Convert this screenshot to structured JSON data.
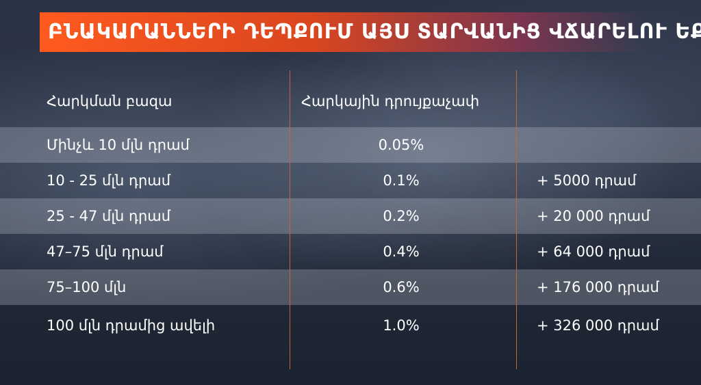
{
  "title": "ԲՆԱԿԱՐԱՆՆԵՐԻ ԴԵՊՔՈՒՄ ԱՅՍ ՏԱՐՎԱՆԻՑ ՎՃԱՐԵԼՈՒ ԵՔ",
  "table": {
    "headers": [
      "Հարկման բազա",
      "Հարկային դրույքաչափ",
      ""
    ],
    "rows": [
      {
        "base": "Մինչև  10 մլն դրամ",
        "rate": "0.05%",
        "extra": ""
      },
      {
        "base": "10 - 25 մլն դրամ",
        "rate": "0.1%",
        "extra": "+ 5000 դրամ"
      },
      {
        "base": "25 - 47 մլն դրամ",
        "rate": "0.2%",
        "extra": "+ 20 000 դրամ"
      },
      {
        "base": "47–75 մլն դրամ",
        "rate": "0.4%",
        "extra": "+ 64 000 դրամ"
      },
      {
        "base": "75–100 մլն",
        "rate": "0.6%",
        "extra": "+ 176 000 դրամ"
      },
      {
        "base": "100 մլն դրամից ավելի",
        "rate": "1.0%",
        "extra": "+ 326 000 դրամ"
      }
    ]
  },
  "colors": {
    "accent": "#ff5a1f",
    "divider": "#c8643a"
  }
}
